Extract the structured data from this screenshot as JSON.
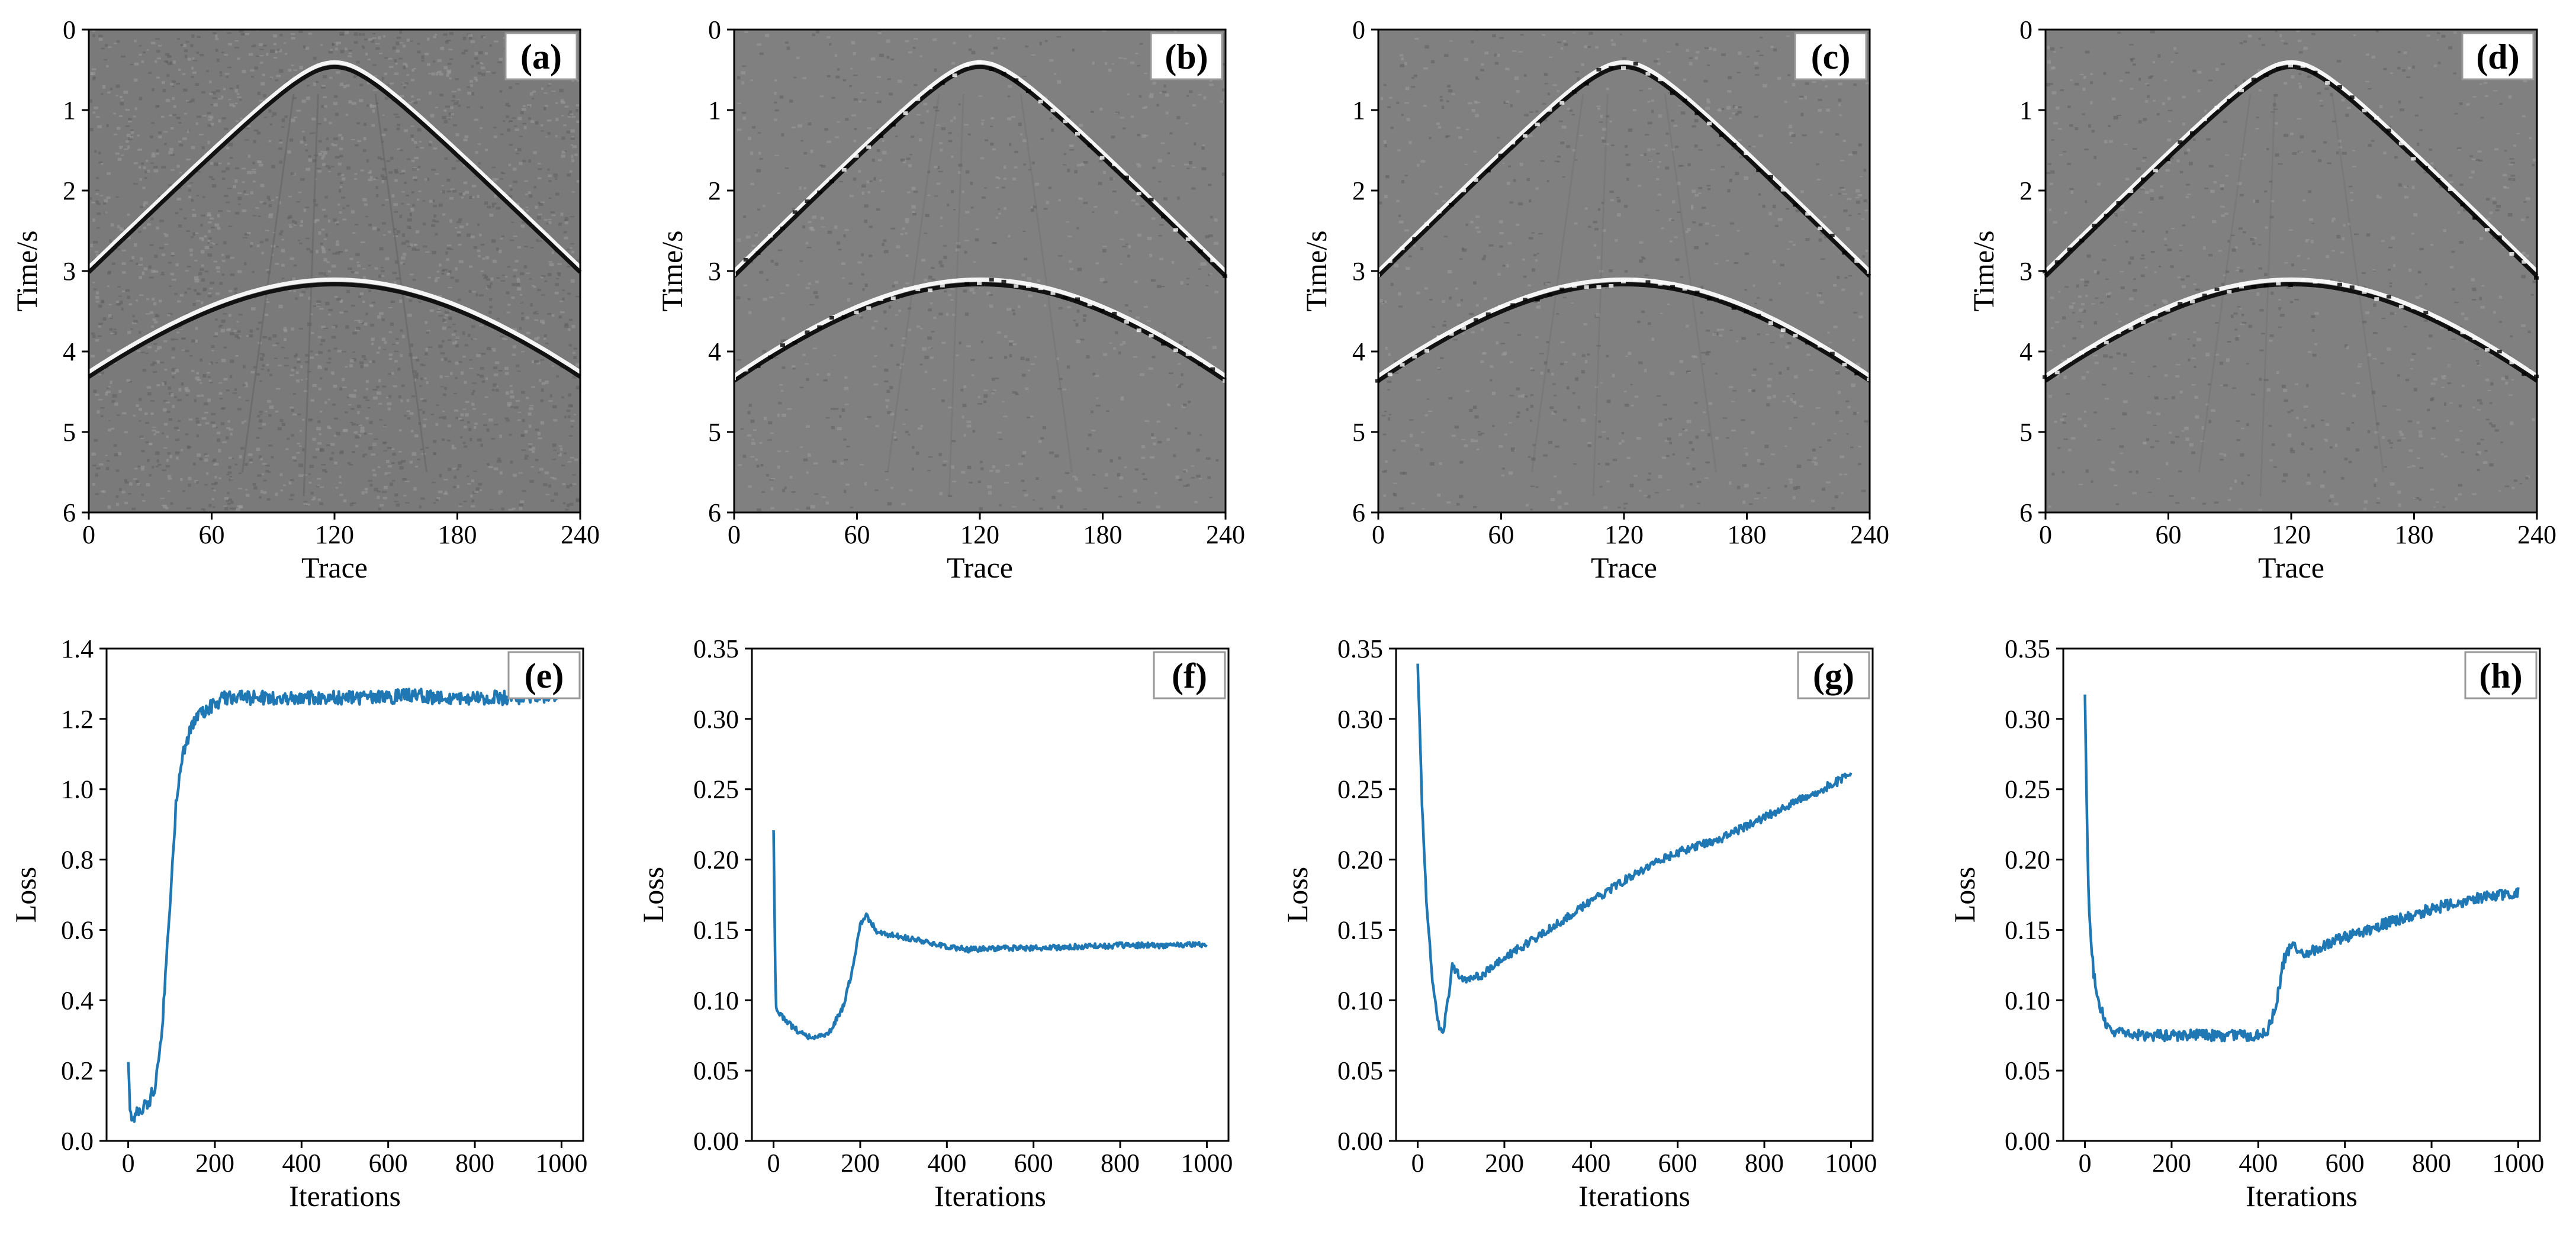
{
  "chart_data": [
    {
      "type": "heatmap",
      "panel": "(a)",
      "xlabel": "Trace",
      "ylabel": "Time/s",
      "xlim": [
        0,
        240
      ],
      "ylim": [
        0,
        6
      ],
      "xticks": [
        0,
        60,
        120,
        180,
        240
      ],
      "yticks": [
        0,
        1,
        2,
        3,
        4,
        5,
        6
      ],
      "y_inverted": true,
      "colormap": "gray",
      "background": "#7a7a7a",
      "noise": "high",
      "events": [
        {
          "shape": "hyperbola",
          "apex_trace": 120,
          "apex_time": 0.45,
          "edge_time": 3.0
        },
        {
          "shape": "hyperbola",
          "apex_trace": 120,
          "apex_time": 3.15,
          "edge_time": 4.3
        }
      ]
    },
    {
      "type": "heatmap",
      "panel": "(b)",
      "xlabel": "Trace",
      "ylabel": "Time/s",
      "xlim": [
        0,
        240
      ],
      "ylim": [
        0,
        6
      ],
      "xticks": [
        0,
        60,
        120,
        180,
        240
      ],
      "yticks": [
        0,
        1,
        2,
        3,
        4,
        5,
        6
      ],
      "y_inverted": true,
      "colormap": "gray",
      "background": "#808080",
      "noise": "low",
      "events": [
        {
          "shape": "hyperbola",
          "apex_trace": 120,
          "apex_time": 0.45,
          "edge_time": 3.05
        },
        {
          "shape": "hyperbola",
          "apex_trace": 120,
          "apex_time": 3.15,
          "edge_time": 4.35
        }
      ]
    },
    {
      "type": "heatmap",
      "panel": "(c)",
      "xlabel": "Trace",
      "ylabel": "Time/s",
      "xlim": [
        0,
        240
      ],
      "ylim": [
        0,
        6
      ],
      "xticks": [
        0,
        60,
        120,
        180,
        240
      ],
      "yticks": [
        0,
        1,
        2,
        3,
        4,
        5,
        6
      ],
      "y_inverted": true,
      "colormap": "gray",
      "background": "#808080",
      "noise": "low",
      "events": [
        {
          "shape": "hyperbola",
          "apex_trace": 120,
          "apex_time": 0.45,
          "edge_time": 3.05
        },
        {
          "shape": "hyperbola",
          "apex_trace": 120,
          "apex_time": 3.15,
          "edge_time": 4.35
        }
      ]
    },
    {
      "type": "heatmap",
      "panel": "(d)",
      "xlabel": "Trace",
      "ylabel": "Time/s",
      "xlim": [
        0,
        240
      ],
      "ylim": [
        0,
        6
      ],
      "xticks": [
        0,
        60,
        120,
        180,
        240
      ],
      "yticks": [
        0,
        1,
        2,
        3,
        4,
        5,
        6
      ],
      "y_inverted": true,
      "colormap": "gray",
      "background": "#808080",
      "noise": "low",
      "events": [
        {
          "shape": "hyperbola",
          "apex_trace": 120,
          "apex_time": 0.45,
          "edge_time": 3.05
        },
        {
          "shape": "hyperbola",
          "apex_trace": 120,
          "apex_time": 3.15,
          "edge_time": 4.35
        }
      ]
    },
    {
      "type": "line",
      "panel": "(e)",
      "xlabel": "Iterations",
      "ylabel": "Loss",
      "xlim": [
        -50,
        1050
      ],
      "ylim": [
        0.0,
        1.4
      ],
      "xticks": [
        0,
        200,
        400,
        600,
        800,
        1000
      ],
      "yticks": [
        0.0,
        0.2,
        0.4,
        0.6,
        0.8,
        1.0,
        1.2,
        1.4
      ],
      "ytick_decimals": 1,
      "color": "#1f77b4",
      "series": [
        {
          "x": [
            0,
            5,
            15,
            30,
            50,
            60,
            70,
            80,
            90,
            100,
            110,
            120,
            130,
            150,
            170,
            200,
            220,
            250,
            300,
            400,
            500,
            600,
            665,
            700,
            800,
            900,
            1000
          ],
          "y": [
            0.22,
            0.08,
            0.07,
            0.09,
            0.12,
            0.15,
            0.22,
            0.35,
            0.55,
            0.75,
            0.95,
            1.05,
            1.12,
            1.19,
            1.22,
            1.24,
            1.26,
            1.26,
            1.26,
            1.26,
            1.26,
            1.26,
            1.27,
            1.26,
            1.26,
            1.26,
            1.27
          ],
          "noise": 0.02
        }
      ]
    },
    {
      "type": "line",
      "panel": "(f)",
      "xlabel": "Iterations",
      "ylabel": "Loss",
      "xlim": [
        -50,
        1050
      ],
      "ylim": [
        0.0,
        0.35
      ],
      "xticks": [
        0,
        200,
        400,
        600,
        800,
        1000
      ],
      "yticks": [
        0.0,
        0.05,
        0.1,
        0.15,
        0.2,
        0.25,
        0.3,
        0.35
      ],
      "ytick_decimals": 2,
      "color": "#1f77b4",
      "series": [
        {
          "x": [
            0,
            5,
            15,
            40,
            70,
            100,
            130,
            160,
            185,
            200,
            215,
            240,
            300,
            400,
            450,
            500,
            600,
            700,
            800,
            900,
            1000
          ],
          "y": [
            0.22,
            0.095,
            0.09,
            0.082,
            0.075,
            0.073,
            0.078,
            0.095,
            0.125,
            0.155,
            0.16,
            0.148,
            0.145,
            0.138,
            0.136,
            0.137,
            0.137,
            0.138,
            0.139,
            0.139,
            0.14
          ],
          "noise": 0.002
        }
      ]
    },
    {
      "type": "line",
      "panel": "(g)",
      "xlabel": "Iterations",
      "ylabel": "Loss",
      "xlim": [
        -50,
        1050
      ],
      "ylim": [
        0.0,
        0.35
      ],
      "xticks": [
        0,
        200,
        400,
        600,
        800,
        1000
      ],
      "yticks": [
        0.0,
        0.05,
        0.1,
        0.15,
        0.2,
        0.25,
        0.3,
        0.35
      ],
      "ytick_decimals": 2,
      "color": "#1f77b4",
      "series": [
        {
          "x": [
            0,
            10,
            20,
            35,
            50,
            60,
            70,
            80,
            90,
            100,
            150,
            200,
            300,
            400,
            500,
            600,
            700,
            800,
            900,
            1000
          ],
          "y": [
            0.34,
            0.24,
            0.17,
            0.11,
            0.08,
            0.08,
            0.1,
            0.125,
            0.12,
            0.115,
            0.118,
            0.13,
            0.15,
            0.17,
            0.19,
            0.205,
            0.215,
            0.23,
            0.245,
            0.26
          ],
          "noise": 0.003
        }
      ]
    },
    {
      "type": "line",
      "panel": "(h)",
      "xlabel": "Iterations",
      "ylabel": "Loss",
      "xlim": [
        -50,
        1050
      ],
      "ylim": [
        0.0,
        0.35
      ],
      "xticks": [
        0,
        200,
        400,
        600,
        800,
        1000
      ],
      "yticks": [
        0.0,
        0.05,
        0.1,
        0.15,
        0.2,
        0.25,
        0.3,
        0.35
      ],
      "ytick_decimals": 2,
      "color": "#1f77b4",
      "series": [
        {
          "x": [
            0,
            5,
            10,
            20,
            35,
            50,
            70,
            100,
            200,
            300,
            400,
            420,
            440,
            460,
            480,
            500,
            600,
            700,
            800,
            900,
            1000
          ],
          "y": [
            0.32,
            0.22,
            0.16,
            0.12,
            0.095,
            0.083,
            0.077,
            0.075,
            0.075,
            0.075,
            0.075,
            0.076,
            0.095,
            0.13,
            0.14,
            0.132,
            0.145,
            0.155,
            0.165,
            0.172,
            0.177
          ],
          "noise": 0.004
        }
      ]
    }
  ]
}
